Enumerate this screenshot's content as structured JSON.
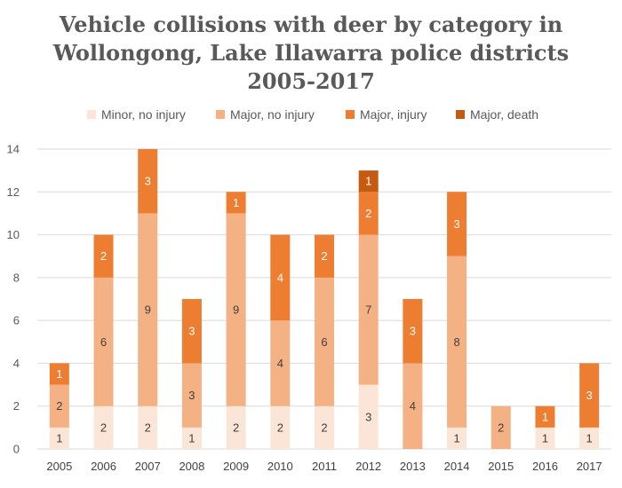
{
  "chart_data": {
    "type": "bar",
    "stacked": true,
    "title_lines": [
      "Vehicle collisions with deer by category in",
      "Wollongong, Lake Illawarra police districts",
      "2005-2017"
    ],
    "categories": [
      "2005",
      "2006",
      "2007",
      "2008",
      "2009",
      "2010",
      "2011",
      "2012",
      "2013",
      "2014",
      "2015",
      "2016",
      "2017"
    ],
    "series": [
      {
        "name": "Minor, no injury",
        "color": "#fbe5d6",
        "label_color": "#404040",
        "values": [
          1,
          2,
          2,
          1,
          2,
          2,
          2,
          3,
          0,
          1,
          0,
          1,
          1
        ]
      },
      {
        "name": "Major, no injury",
        "color": "#f4b183",
        "label_color": "#404040",
        "values": [
          2,
          6,
          9,
          3,
          9,
          4,
          6,
          7,
          4,
          8,
          2,
          0,
          0
        ]
      },
      {
        "name": "Major, injury",
        "color": "#ed7d31",
        "label_color": "#ffffff",
        "values": [
          1,
          2,
          3,
          3,
          1,
          4,
          2,
          2,
          3,
          3,
          0,
          1,
          3
        ]
      },
      {
        "name": "Major, death",
        "color": "#c55a11",
        "label_color": "#ffffff",
        "values": [
          0,
          0,
          0,
          0,
          0,
          0,
          0,
          1,
          0,
          0,
          0,
          0,
          0
        ]
      }
    ],
    "ylim": [
      0,
      14
    ],
    "yticks": [
      0,
      2,
      4,
      6,
      8,
      10,
      12,
      14
    ],
    "grid": true,
    "legend_position": "top",
    "xlabel": "",
    "ylabel": ""
  }
}
